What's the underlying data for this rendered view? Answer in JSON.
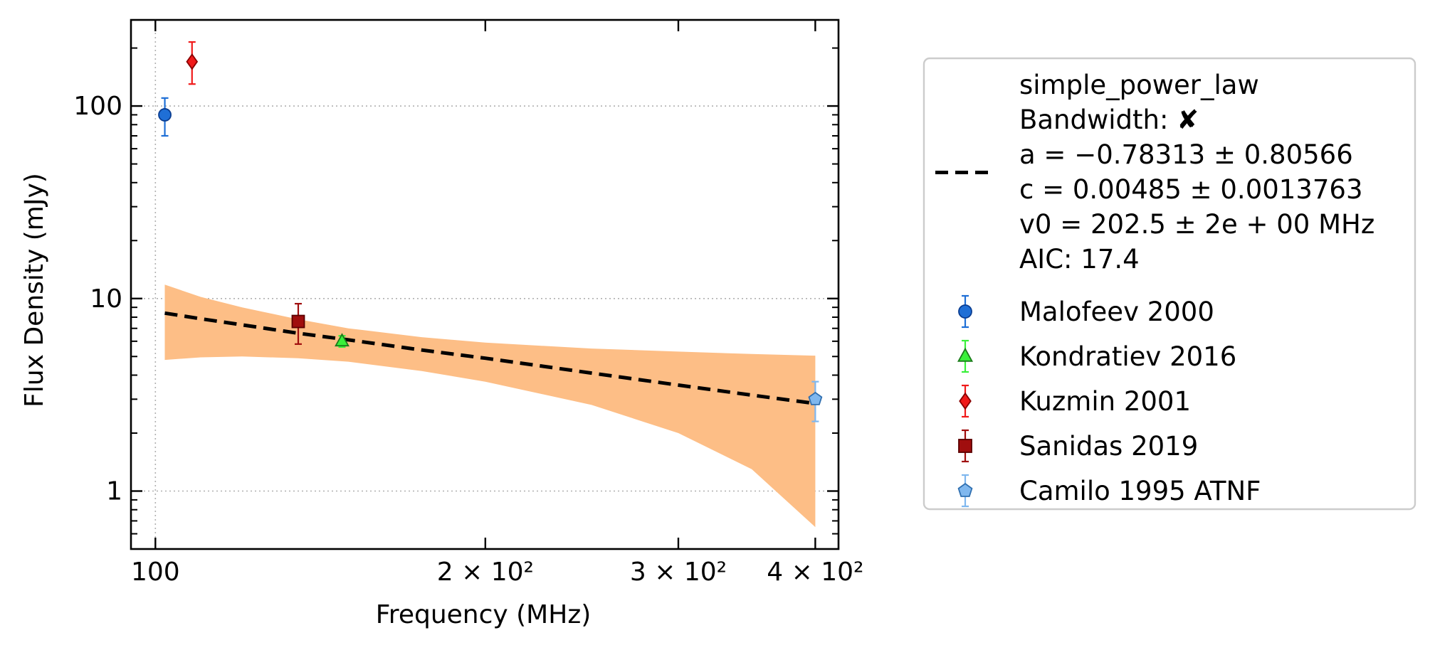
{
  "chart_data": {
    "type": "scatter",
    "xlabel": "Frequency (MHz)",
    "ylabel": "Flux Density (mJy)",
    "xscale": "log",
    "yscale": "log",
    "xlim": [
      95,
      420
    ],
    "ylim": [
      0.5,
      280
    ],
    "grid": "on",
    "legend_position": "outside-right",
    "x_ticks": [
      {
        "value": 100,
        "label": "100"
      },
      {
        "value": 200,
        "label": "2 × 10²"
      },
      {
        "value": 300,
        "label": "3 × 10²"
      },
      {
        "value": 400,
        "label": "4 × 10²"
      }
    ],
    "y_ticks": [
      {
        "value": 1,
        "label": "1"
      },
      {
        "value": 10,
        "label": "10"
      },
      {
        "value": 100,
        "label": "100"
      }
    ],
    "fit": {
      "label_lines": [
        "simple_power_law",
        "Bandwidth: ✘",
        "a = −0.78313 ± 0.80566",
        "c = 0.00485 ± 0.0013763",
        "v0 = 202.5 ± 2e + 00 MHz",
        "AIC: 17.4"
      ],
      "color": "#000000",
      "band_color": "#fdbe86",
      "x": [
        102,
        110,
        120,
        135,
        150,
        175,
        200,
        250,
        300,
        350,
        400
      ],
      "y": [
        8.4,
        7.85,
        7.3,
        6.6,
        6.1,
        5.4,
        4.9,
        4.1,
        3.55,
        3.15,
        2.85
      ],
      "band_lower": [
        4.8,
        4.95,
        5.0,
        4.9,
        4.7,
        4.2,
        3.7,
        2.8,
        2.0,
        1.3,
        0.65
      ],
      "band_upper": [
        11.8,
        10.2,
        9.0,
        7.8,
        7.0,
        6.3,
        5.9,
        5.5,
        5.3,
        5.15,
        5.05
      ]
    },
    "series": [
      {
        "name": "Malofeev 2000",
        "marker": "circle",
        "color": "#1f6fd6",
        "edge": "#0a3d91",
        "points": [
          {
            "x": 102,
            "y": 90,
            "ylo": 70,
            "yhi": 110
          }
        ]
      },
      {
        "name": "Kondratiev 2016",
        "marker": "triangle",
        "color": "#39f03a",
        "edge": "#1a7a1a",
        "points": [
          {
            "x": 148,
            "y": 6.0,
            "ylo": 5.6,
            "yhi": 6.4
          }
        ]
      },
      {
        "name": "Kuzmin 2001",
        "marker": "diamond",
        "color": "#f01a1a",
        "edge": "#8a0000",
        "points": [
          {
            "x": 108,
            "y": 170,
            "ylo": 130,
            "yhi": 215
          }
        ]
      },
      {
        "name": "Sanidas 2019",
        "marker": "square",
        "color": "#a00e0e",
        "edge": "#5a0000",
        "points": [
          {
            "x": 135,
            "y": 7.6,
            "ylo": 5.8,
            "yhi": 9.4
          }
        ]
      },
      {
        "name": "Camilo 1995 ATNF",
        "marker": "pentagon",
        "color": "#7fb7ee",
        "edge": "#2f6fb0",
        "points": [
          {
            "x": 400,
            "y": 3.0,
            "ylo": 2.3,
            "yhi": 3.7
          }
        ]
      }
    ]
  }
}
